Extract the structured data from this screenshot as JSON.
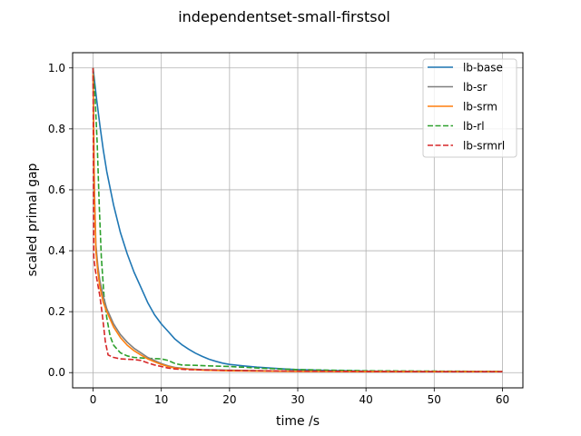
{
  "chart_data": {
    "type": "line",
    "title": "independentset-small-firstsol",
    "xlabel": "time /s",
    "ylabel": "scaled primal gap",
    "xlim": [
      -3,
      63
    ],
    "ylim": [
      -0.05,
      1.05
    ],
    "xticks": [
      0,
      10,
      20,
      30,
      40,
      50,
      60
    ],
    "xtick_labels": [
      "0",
      "10",
      "20",
      "30",
      "40",
      "50",
      "60"
    ],
    "yticks": [
      0.0,
      0.2,
      0.4,
      0.6,
      0.8,
      1.0
    ],
    "ytick_labels": [
      "0.0",
      "0.2",
      "0.4",
      "0.6",
      "0.8",
      "1.0"
    ],
    "grid": true,
    "legend_position": "top-right",
    "series": [
      {
        "name": "lb-base",
        "color": "#1f77b4",
        "dash": "solid",
        "x": [
          0,
          0.5,
          1,
          1.5,
          2,
          3,
          4,
          5,
          6,
          7,
          8,
          9,
          10,
          11,
          12,
          13,
          14,
          15,
          16,
          17,
          18,
          19,
          20,
          22,
          24,
          26,
          28,
          30,
          35,
          40,
          45,
          50,
          55,
          60
        ],
        "y": [
          1.0,
          0.9,
          0.81,
          0.73,
          0.66,
          0.55,
          0.46,
          0.39,
          0.33,
          0.28,
          0.23,
          0.19,
          0.16,
          0.135,
          0.11,
          0.092,
          0.077,
          0.064,
          0.053,
          0.044,
          0.037,
          0.031,
          0.027,
          0.022,
          0.018,
          0.015,
          0.012,
          0.01,
          0.007,
          0.005,
          0.004,
          0.003,
          0.003,
          0.003
        ]
      },
      {
        "name": "lb-sr",
        "color": "#7f7f7f",
        "dash": "solid",
        "x": [
          0,
          0.2,
          0.4,
          0.7,
          1,
          1.5,
          2,
          3,
          4,
          5,
          6,
          7,
          8,
          9,
          10,
          11,
          12,
          14,
          16,
          20,
          25,
          30,
          40,
          50,
          60
        ],
        "y": [
          0.99,
          0.6,
          0.42,
          0.35,
          0.3,
          0.25,
          0.21,
          0.16,
          0.125,
          0.1,
          0.08,
          0.065,
          0.05,
          0.04,
          0.03,
          0.022,
          0.017,
          0.012,
          0.01,
          0.008,
          0.006,
          0.005,
          0.004,
          0.003,
          0.003
        ]
      },
      {
        "name": "lb-srm",
        "color": "#ff7f0e",
        "dash": "solid",
        "x": [
          0,
          0.2,
          0.4,
          0.7,
          1,
          1.5,
          2,
          3,
          4,
          5,
          6,
          7,
          8,
          9,
          10,
          11,
          12,
          14,
          16,
          20,
          25,
          30,
          40,
          50,
          60
        ],
        "y": [
          0.98,
          0.58,
          0.4,
          0.33,
          0.28,
          0.23,
          0.2,
          0.15,
          0.115,
          0.09,
          0.072,
          0.058,
          0.045,
          0.036,
          0.027,
          0.02,
          0.015,
          0.011,
          0.008,
          0.006,
          0.005,
          0.004,
          0.003,
          0.003,
          0.003
        ]
      },
      {
        "name": "lb-rl",
        "color": "#2ca02c",
        "dash": "dashed",
        "x": [
          0,
          0.3,
          0.6,
          0.9,
          1.2,
          1.6,
          2,
          2.5,
          3,
          4,
          5,
          6,
          8,
          10,
          11,
          12,
          13,
          15,
          17,
          20,
          25,
          30,
          40,
          50,
          60
        ],
        "y": [
          1.0,
          0.9,
          0.75,
          0.55,
          0.38,
          0.25,
          0.18,
          0.12,
          0.09,
          0.065,
          0.055,
          0.05,
          0.047,
          0.045,
          0.04,
          0.03,
          0.025,
          0.024,
          0.022,
          0.02,
          0.014,
          0.01,
          0.006,
          0.005,
          0.004
        ]
      },
      {
        "name": "lb-srmrl",
        "color": "#d62728",
        "dash": "dashed",
        "x": [
          0,
          0.1,
          0.3,
          0.6,
          1,
          1.4,
          1.8,
          2.2,
          3,
          4,
          5,
          6,
          7,
          8,
          9,
          10,
          11,
          12,
          14,
          20,
          30,
          40,
          50,
          60
        ],
        "y": [
          1.0,
          0.38,
          0.34,
          0.3,
          0.25,
          0.18,
          0.1,
          0.058,
          0.05,
          0.045,
          0.044,
          0.043,
          0.04,
          0.032,
          0.025,
          0.02,
          0.015,
          0.012,
          0.01,
          0.007,
          0.005,
          0.004,
          0.003,
          0.003
        ]
      }
    ]
  }
}
